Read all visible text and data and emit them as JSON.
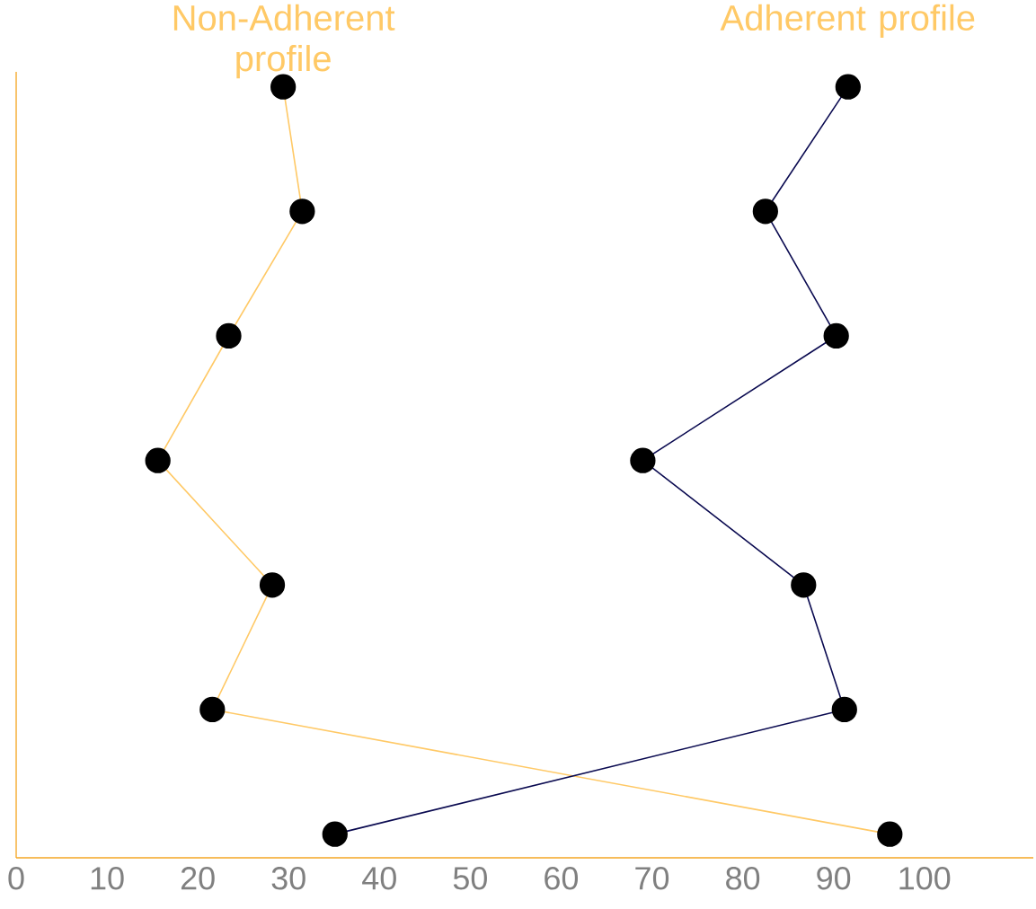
{
  "chart_data": {
    "type": "line",
    "orientation": "horizontal",
    "categories": [
      null,
      null,
      null,
      null,
      null,
      null,
      null
    ],
    "series": [
      {
        "name": "Non-Adherent profile",
        "color": "#ffc966",
        "values": [
          29.4,
          31.5,
          23.4,
          15.6,
          28.2,
          21.6,
          96.2
        ]
      },
      {
        "name": "Adherent profile",
        "color": "#0a0a50",
        "values": [
          91.6,
          82.5,
          90.3,
          69,
          86.7,
          91.2,
          35.1
        ]
      }
    ],
    "xlim": [
      0,
      112
    ],
    "xticks": [
      0,
      10,
      20,
      30,
      40,
      50,
      60,
      70,
      80,
      90,
      100
    ],
    "marker": "circle",
    "line_style": "solid",
    "legend": false,
    "grid": false
  }
}
